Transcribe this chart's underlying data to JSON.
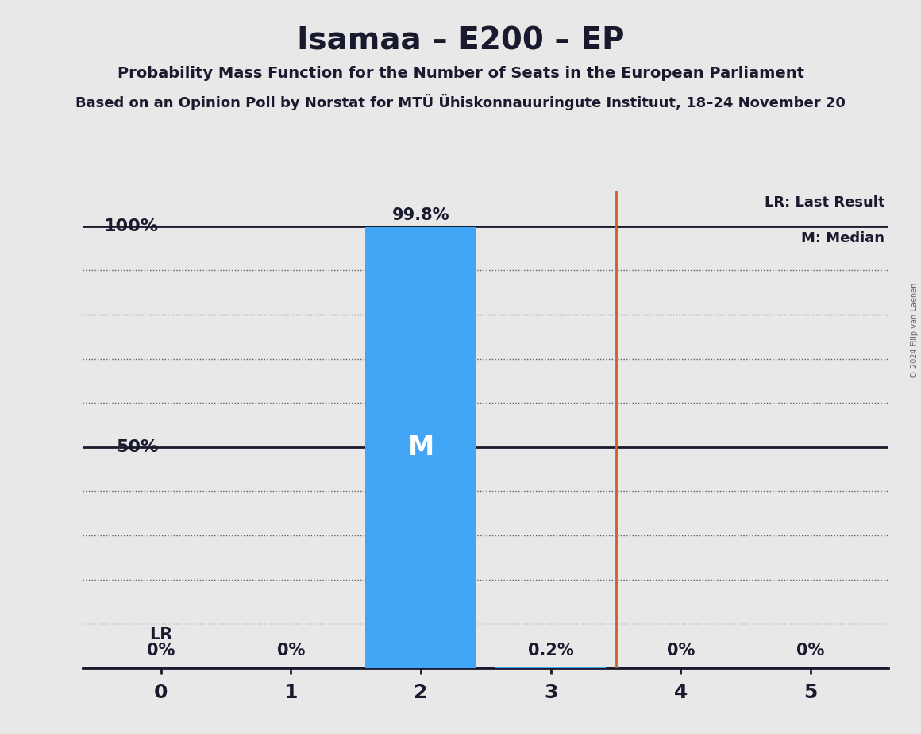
{
  "title": "Isamaa – E200 – EP",
  "subtitle": "Probability Mass Function for the Number of Seats in the European Parliament",
  "subtitle2": "Based on an Opinion Poll by Norstat for MTÜ Ühiskonnauuringute Instituut, 18–24 November 20",
  "copyright": "© 2024 Filip van Laenen",
  "seats": [
    0,
    1,
    2,
    3,
    4,
    5
  ],
  "probabilities": [
    0.0,
    0.0,
    0.998,
    0.002,
    0.0,
    0.0
  ],
  "prob_labels": [
    "0%",
    "0%",
    "99.8%",
    "0.2%",
    "0%",
    "0%"
  ],
  "median": 2,
  "last_result": 3.5,
  "bar_color": "#42A5F5",
  "lr_color": "#C8612A",
  "background_color": "#E8E8E8",
  "text_color": "#1A1A2E",
  "median_label": "M",
  "lr_label": "LR",
  "legend_lr": "LR: Last Result",
  "legend_m": "M: Median",
  "yticks_major": [
    0.0,
    0.5,
    1.0
  ],
  "ytick_labels_major": [
    "",
    "50%",
    "100%"
  ],
  "yticks_minor": [
    0.0,
    0.1,
    0.2,
    0.3,
    0.4,
    0.5,
    0.6,
    0.7,
    0.8,
    0.9,
    1.0
  ],
  "ylim": [
    0,
    1.08
  ],
  "solid_hlines": [
    0.0,
    0.5,
    1.0
  ],
  "dotted_hlines": [
    0.1,
    0.2,
    0.3,
    0.4,
    0.6,
    0.7,
    0.8,
    0.9
  ]
}
